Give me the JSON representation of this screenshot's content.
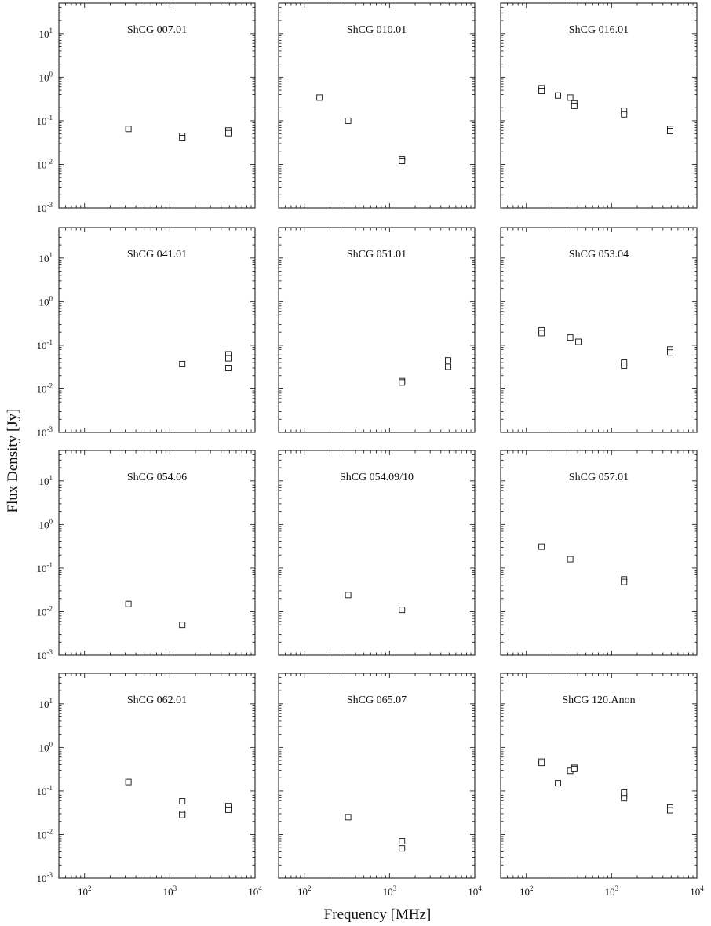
{
  "chart_data": {
    "type": "scatter",
    "xlabel": "Frequency [MHz]",
    "ylabel": "Flux Density [Jy]",
    "xscale": "log",
    "yscale": "log",
    "xlim": [
      50,
      10000
    ],
    "ylim": [
      0.001,
      50
    ],
    "xticks": [
      100,
      1000,
      10000
    ],
    "xtick_labels": [
      {
        "base": "10",
        "exp": "2"
      },
      {
        "base": "10",
        "exp": "3"
      },
      {
        "base": "10",
        "exp": "4"
      }
    ],
    "yticks": [
      0.001,
      0.01,
      0.1,
      1,
      10
    ],
    "ytick_labels": [
      {
        "base": "10",
        "exp": "-3"
      },
      {
        "base": "10",
        "exp": "-2"
      },
      {
        "base": "10",
        "exp": "-1"
      },
      {
        "base": "10",
        "exp": "0"
      },
      {
        "base": "10",
        "exp": "1"
      }
    ],
    "grid": false,
    "legend": "none",
    "marker": "open-square",
    "panels": [
      {
        "title": "ShCG 007.01",
        "points": [
          [
            327,
            0.065
          ],
          [
            1400,
            0.045
          ],
          [
            1400,
            0.04
          ],
          [
            4860,
            0.06
          ],
          [
            4860,
            0.052
          ]
        ]
      },
      {
        "title": "ShCG 010.01",
        "points": [
          [
            151,
            0.34
          ],
          [
            327,
            0.1
          ],
          [
            1400,
            0.013
          ],
          [
            1400,
            0.012
          ]
        ]
      },
      {
        "title": "ShCG 016.01",
        "points": [
          [
            151,
            0.56
          ],
          [
            151,
            0.48
          ],
          [
            235,
            0.38
          ],
          [
            327,
            0.34
          ],
          [
            365,
            0.25
          ],
          [
            365,
            0.22
          ],
          [
            1400,
            0.17
          ],
          [
            1400,
            0.14
          ],
          [
            4860,
            0.065
          ],
          [
            4860,
            0.058
          ]
        ]
      },
      {
        "title": "ShCG 041.01",
        "points": [
          [
            1400,
            0.037
          ],
          [
            4860,
            0.062
          ],
          [
            4860,
            0.05
          ],
          [
            4860,
            0.03
          ]
        ]
      },
      {
        "title": "ShCG 051.01",
        "points": [
          [
            1400,
            0.015
          ],
          [
            1400,
            0.014
          ],
          [
            4860,
            0.045
          ],
          [
            4860,
            0.032
          ]
        ]
      },
      {
        "title": "ShCG 053.04",
        "points": [
          [
            151,
            0.22
          ],
          [
            151,
            0.19
          ],
          [
            327,
            0.15
          ],
          [
            408,
            0.12
          ],
          [
            1400,
            0.04
          ],
          [
            1400,
            0.034
          ],
          [
            4860,
            0.08
          ],
          [
            4860,
            0.068
          ]
        ]
      },
      {
        "title": "ShCG 054.06",
        "points": [
          [
            327,
            0.015
          ],
          [
            1400,
            0.005
          ]
        ]
      },
      {
        "title": "ShCG 054.09/10",
        "points": [
          [
            327,
            0.024
          ],
          [
            1400,
            0.011
          ]
        ]
      },
      {
        "title": "ShCG 057.01",
        "points": [
          [
            151,
            0.31
          ],
          [
            327,
            0.16
          ],
          [
            1400,
            0.055
          ],
          [
            1400,
            0.048
          ]
        ]
      },
      {
        "title": "ShCG 062.01",
        "points": [
          [
            327,
            0.16
          ],
          [
            1400,
            0.058
          ],
          [
            1400,
            0.03
          ],
          [
            1400,
            0.028
          ],
          [
            4860,
            0.045
          ],
          [
            4860,
            0.037
          ]
        ]
      },
      {
        "title": "ShCG 065.07",
        "points": [
          [
            327,
            0.025
          ],
          [
            1400,
            0.007
          ],
          [
            1400,
            0.0048
          ]
        ]
      },
      {
        "title": "ShCG 120.Anon",
        "points": [
          [
            151,
            0.47
          ],
          [
            151,
            0.44
          ],
          [
            235,
            0.15
          ],
          [
            327,
            0.29
          ],
          [
            365,
            0.34
          ],
          [
            365,
            0.32
          ],
          [
            1400,
            0.092
          ],
          [
            1400,
            0.078
          ],
          [
            1400,
            0.068
          ],
          [
            4860,
            0.042
          ],
          [
            4860,
            0.036
          ]
        ]
      }
    ]
  }
}
